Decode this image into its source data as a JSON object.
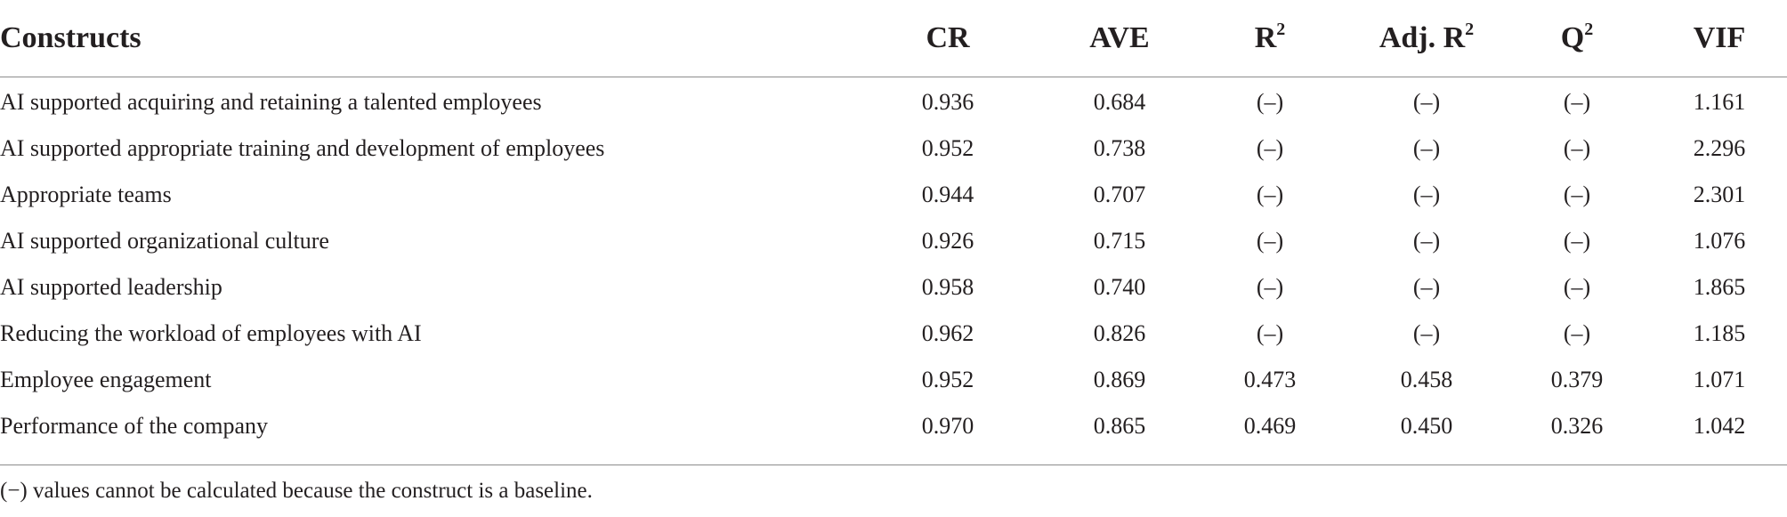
{
  "table": {
    "headers": {
      "constructs": "Constructs",
      "cr": "CR",
      "ave": "AVE",
      "r2_base": "R",
      "r2_sup": "2",
      "adj_r2_base": "Adj. R",
      "adj_r2_sup": "2",
      "q2_base": "Q",
      "q2_sup": "2",
      "vif": "VIF"
    },
    "rows": [
      {
        "construct": "AI supported acquiring and retaining a talented employees",
        "cr": "0.936",
        "ave": "0.684",
        "r2": "(–)",
        "adj_r2": "(–)",
        "q2": "(–)",
        "vif": "1.161"
      },
      {
        "construct": "AI supported appropriate training and development of employees",
        "cr": "0.952",
        "ave": "0.738",
        "r2": "(–)",
        "adj_r2": "(–)",
        "q2": "(–)",
        "vif": "2.296"
      },
      {
        "construct": "Appropriate teams",
        "cr": "0.944",
        "ave": "0.707",
        "r2": "(–)",
        "adj_r2": "(–)",
        "q2": "(–)",
        "vif": "2.301"
      },
      {
        "construct": "AI supported organizational culture",
        "cr": "0.926",
        "ave": "0.715",
        "r2": "(–)",
        "adj_r2": "(–)",
        "q2": "(–)",
        "vif": "1.076"
      },
      {
        "construct": "AI supported leadership",
        "cr": "0.958",
        "ave": "0.740",
        "r2": "(–)",
        "adj_r2": "(–)",
        "q2": "(–)",
        "vif": "1.865"
      },
      {
        "construct": "Reducing the workload of employees with AI",
        "cr": "0.962",
        "ave": "0.826",
        "r2": "(–)",
        "adj_r2": "(–)",
        "q2": "(–)",
        "vif": "1.185"
      },
      {
        "construct": "Employee engagement",
        "cr": "0.952",
        "ave": "0.869",
        "r2": "0.473",
        "adj_r2": "0.458",
        "q2": "0.379",
        "vif": "1.071"
      },
      {
        "construct": "Performance of the company",
        "cr": "0.970",
        "ave": "0.865",
        "r2": "0.469",
        "adj_r2": "0.450",
        "q2": "0.326",
        "vif": "1.042"
      }
    ],
    "footnote": "(−) values cannot be calculated because the construct is a baseline."
  }
}
